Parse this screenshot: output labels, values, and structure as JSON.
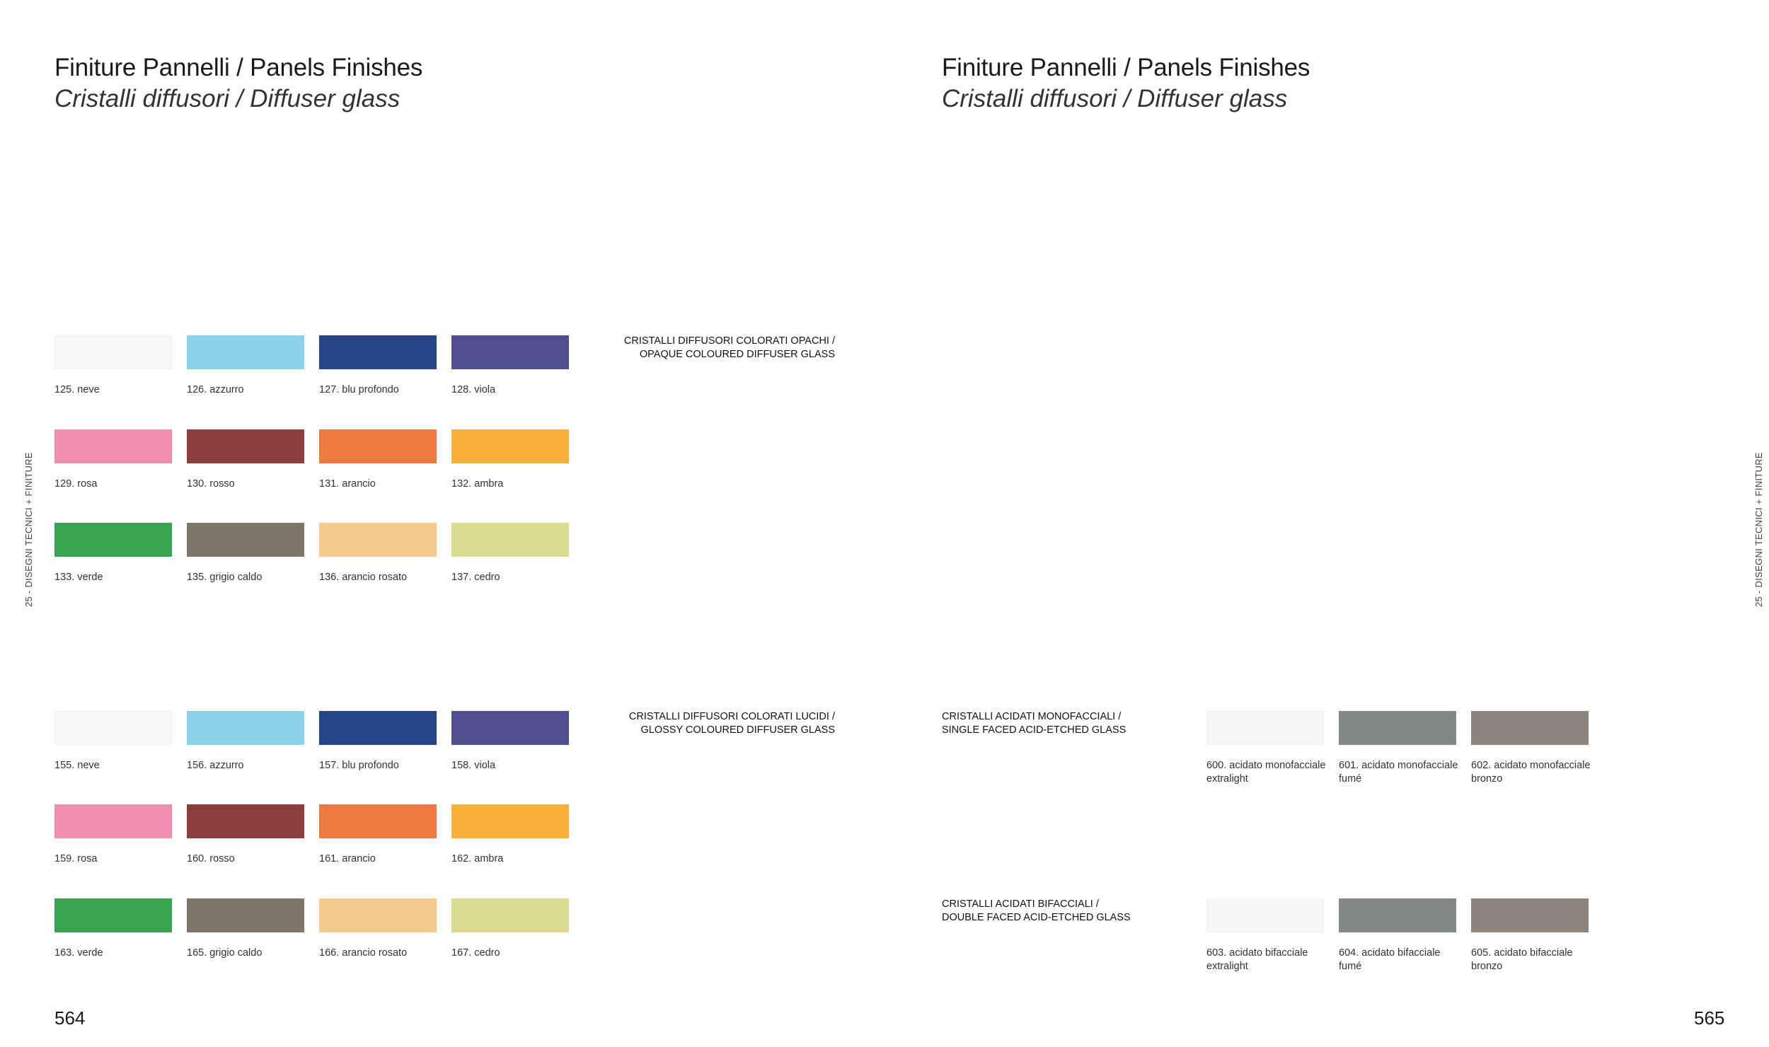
{
  "left_page": {
    "title": "Finiture Pannelli / Panels Finishes",
    "subtitle": "Cristalli diffusori / Diffuser glass",
    "side_tab": "25 - DISEGNI TECNICI + FINITURE",
    "page_number": "564",
    "sections": [
      {
        "label_line1": "CRISTALLI DIFFUSORI COLORATI OPACHI /",
        "label_line2": "OPAQUE COLOURED DIFFUSER GLASS",
        "swatches": [
          {
            "label": "125. neve",
            "color": "#f6f8f7"
          },
          {
            "label": "126. azzurro",
            "color": "#8ad2e8"
          },
          {
            "label": "127. blu profondo",
            "color": "#284488"
          },
          {
            "label": "128. viola",
            "color": "#514f8f"
          },
          {
            "label": "129. rosa",
            "color": "#ef8eaf"
          },
          {
            "label": "130. rosso",
            "color": "#8d3d3c"
          },
          {
            "label": "131. arancio",
            "color": "#ef7a40"
          },
          {
            "label": "132. ambra",
            "color": "#f8b03a"
          },
          {
            "label": "133. verde",
            "color": "#38a351"
          },
          {
            "label": "135. grigio caldo",
            "color": "#7f7669"
          },
          {
            "label": "136. arancio rosato",
            "color": "#f4c98c"
          },
          {
            "label": "137. cedro",
            "color": "#dadb8e"
          }
        ]
      },
      {
        "label_line1": "CRISTALLI DIFFUSORI COLORATI LUCIDI /",
        "label_line2": "GLOSSY COLOURED DIFFUSER GLASS",
        "swatches": [
          {
            "label": "155. neve",
            "color": "#f6f8f7"
          },
          {
            "label": "156. azzurro",
            "color": "#8ad2e8"
          },
          {
            "label": "157. blu profondo",
            "color": "#284488"
          },
          {
            "label": "158. viola",
            "color": "#514f8f"
          },
          {
            "label": "159. rosa",
            "color": "#ef8eaf"
          },
          {
            "label": "160. rosso",
            "color": "#8d3d3c"
          },
          {
            "label": "161. arancio",
            "color": "#ef7a40"
          },
          {
            "label": "162. ambra",
            "color": "#f8b03a"
          },
          {
            "label": "163. verde",
            "color": "#38a351"
          },
          {
            "label": "165. grigio caldo",
            "color": "#7f7669"
          },
          {
            "label": "166. arancio rosato",
            "color": "#f4c98c"
          },
          {
            "label": "167. cedro",
            "color": "#dadb8e"
          }
        ]
      }
    ]
  },
  "right_page": {
    "title": "Finiture Pannelli / Panels Finishes",
    "subtitle": "Cristalli diffusori / Diffuser glass",
    "side_tab": "25 - DISEGNI TECNICI + FINITURE",
    "page_number": "565",
    "sections": [
      {
        "label_line1": "CRISTALLI ACIDATI MONOFACCIALI /",
        "label_line2": "SINGLE FACED ACID-ETCHED GLASS",
        "swatches": [
          {
            "label_line1": "600. acidato monofacciale",
            "label_line2": "extralight",
            "color": "#f5f6f7"
          },
          {
            "label_line1": "601. acidato monofacciale",
            "label_line2": "fumé",
            "color": "#818886"
          },
          {
            "label_line1": "602. acidato monofacciale",
            "label_line2": "bronzo",
            "color": "#8d857b"
          }
        ]
      },
      {
        "label_line1": "CRISTALLI ACIDATI BIFACCIALI /",
        "label_line2": "DOUBLE FACED ACID-ETCHED GLASS",
        "swatches": [
          {
            "label_line1": "603. acidato bifacciale",
            "label_line2": "extralight",
            "color": "#f5f6f7"
          },
          {
            "label_line1": "604. acidato bifacciale",
            "label_line2": "fumé",
            "color": "#818886"
          },
          {
            "label_line1": "605. acidato bifacciale",
            "label_line2": "bronzo",
            "color": "#8d857b"
          }
        ]
      }
    ]
  }
}
